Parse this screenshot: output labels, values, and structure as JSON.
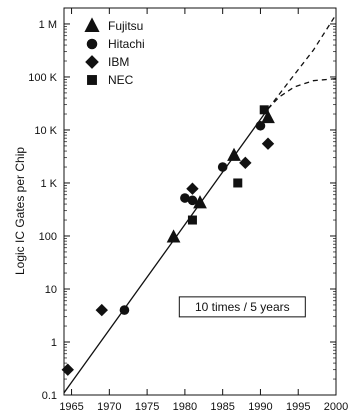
{
  "chart_data": {
    "type": "scatter",
    "title": "",
    "xlabel": "",
    "ylabel": "Logic IC Gates per Chip",
    "xlim": [
      1964,
      2000
    ],
    "ylim": [
      0.1,
      2000000
    ],
    "y_scale": "log",
    "grid": false,
    "legend_position": "top-left",
    "x_ticks": [
      {
        "value": 1965,
        "label": "1965"
      },
      {
        "value": 1970,
        "label": "1970"
      },
      {
        "value": 1975,
        "label": "1975"
      },
      {
        "value": 1980,
        "label": "1980"
      },
      {
        "value": 1985,
        "label": "1985"
      },
      {
        "value": 1990,
        "label": "1990"
      },
      {
        "value": 1995,
        "label": "1995"
      },
      {
        "value": 2000,
        "label": "2000"
      }
    ],
    "y_ticks": [
      {
        "value": 0.1,
        "label": "0.1"
      },
      {
        "value": 1,
        "label": "1"
      },
      {
        "value": 10,
        "label": "10"
      },
      {
        "value": 100,
        "label": "100"
      },
      {
        "value": 1000,
        "label": "1 K"
      },
      {
        "value": 10000,
        "label": "10 K"
      },
      {
        "value": 100000,
        "label": "100 K"
      },
      {
        "value": 1000000,
        "label": "1 M"
      }
    ],
    "series": [
      {
        "name": "Fujitsu",
        "marker": "triangle",
        "points": [
          {
            "x": 1978.5,
            "y": 95
          },
          {
            "x": 1982,
            "y": 420
          },
          {
            "x": 1986.5,
            "y": 3300
          },
          {
            "x": 1991,
            "y": 17000
          }
        ]
      },
      {
        "name": "Hitachi",
        "marker": "circle",
        "points": [
          {
            "x": 1972,
            "y": 4
          },
          {
            "x": 1980,
            "y": 520
          },
          {
            "x": 1981,
            "y": 470
          },
          {
            "x": 1985,
            "y": 2000
          },
          {
            "x": 1990,
            "y": 12000
          }
        ]
      },
      {
        "name": "IBM",
        "marker": "diamond",
        "points": [
          {
            "x": 1964.5,
            "y": 0.3
          },
          {
            "x": 1969,
            "y": 4
          },
          {
            "x": 1981,
            "y": 780
          },
          {
            "x": 1988,
            "y": 2400
          },
          {
            "x": 1991,
            "y": 5500
          }
        ]
      },
      {
        "name": "NEC",
        "marker": "square",
        "points": [
          {
            "x": 1981,
            "y": 200
          },
          {
            "x": 1987,
            "y": 1000
          },
          {
            "x": 1990.5,
            "y": 24000
          }
        ]
      }
    ],
    "trend_lines": [
      {
        "style": "solid",
        "points": [
          {
            "x": 1964,
            "y": 0.11
          },
          {
            "x": 1991,
            "y": 25000
          }
        ]
      },
      {
        "style": "dashed",
        "points": [
          {
            "x": 1991,
            "y": 25000
          },
          {
            "x": 1994,
            "y": 90000
          },
          {
            "x": 1997,
            "y": 320000
          },
          {
            "x": 2000,
            "y": 1500000
          }
        ]
      },
      {
        "style": "dashed",
        "points": [
          {
            "x": 1991,
            "y": 25000
          },
          {
            "x": 1992.5,
            "y": 42000
          },
          {
            "x": 1994.5,
            "y": 65000
          },
          {
            "x": 1997,
            "y": 85000
          },
          {
            "x": 2000,
            "y": 93000
          }
        ]
      }
    ],
    "annotation": {
      "text": "10 times / 5 years",
      "x": 1987.6,
      "y": 4.6
    }
  }
}
